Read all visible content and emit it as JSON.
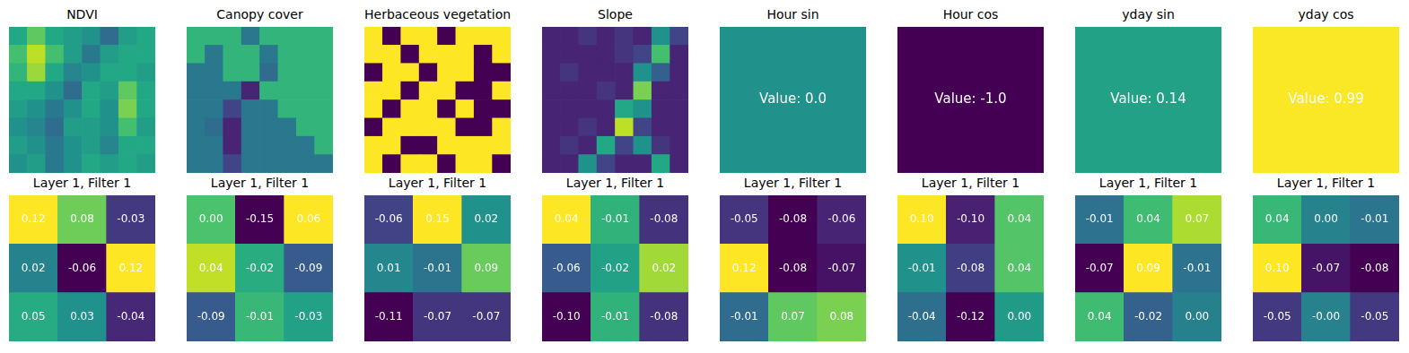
{
  "chart_data": [
    {
      "type": "heatmap",
      "title": "NDVI",
      "tick_labels": false,
      "color_range": [
        0,
        1
      ],
      "values": [
        [
          0.6,
          0.75,
          0.6,
          0.55,
          0.5,
          0.35,
          0.55,
          0.6
        ],
        [
          0.7,
          0.9,
          0.7,
          0.55,
          0.4,
          0.55,
          0.6,
          0.6
        ],
        [
          0.65,
          0.85,
          0.6,
          0.45,
          0.5,
          0.6,
          0.6,
          0.55
        ],
        [
          0.6,
          0.6,
          0.5,
          0.35,
          0.6,
          0.55,
          0.75,
          0.6
        ],
        [
          0.55,
          0.5,
          0.4,
          0.5,
          0.6,
          0.5,
          0.8,
          0.6
        ],
        [
          0.5,
          0.45,
          0.35,
          0.55,
          0.55,
          0.5,
          0.7,
          0.55
        ],
        [
          0.55,
          0.5,
          0.4,
          0.5,
          0.55,
          0.45,
          0.6,
          0.6
        ],
        [
          0.5,
          0.55,
          0.4,
          0.5,
          0.6,
          0.55,
          0.6,
          0.55
        ]
      ]
    },
    {
      "type": "heatmap",
      "title": "Canopy cover",
      "tick_labels": false,
      "color_range": [
        0,
        1
      ],
      "values": [
        [
          0.65,
          0.65,
          0.65,
          0.4,
          0.65,
          0.65,
          0.65,
          0.65
        ],
        [
          0.65,
          0.4,
          0.65,
          0.65,
          0.4,
          0.65,
          0.65,
          0.65
        ],
        [
          0.4,
          0.4,
          0.65,
          0.65,
          0.35,
          0.65,
          0.65,
          0.65
        ],
        [
          0.4,
          0.4,
          0.4,
          0.1,
          0.65,
          0.65,
          0.65,
          0.65
        ],
        [
          0.4,
          0.4,
          0.2,
          0.4,
          0.4,
          0.65,
          0.65,
          0.65
        ],
        [
          0.4,
          0.35,
          0.1,
          0.4,
          0.4,
          0.4,
          0.65,
          0.65
        ],
        [
          0.4,
          0.4,
          0.1,
          0.4,
          0.4,
          0.4,
          0.4,
          0.65
        ],
        [
          0.4,
          0.4,
          0.2,
          0.4,
          0.4,
          0.4,
          0.4,
          0.4
        ]
      ]
    },
    {
      "type": "heatmap",
      "title": "Herbaceous vegetation",
      "tick_labels": false,
      "color_range": [
        0,
        1
      ],
      "values": [
        [
          1,
          0,
          1,
          1,
          0,
          1,
          1,
          1
        ],
        [
          1,
          1,
          0,
          1,
          1,
          1,
          0,
          1
        ],
        [
          0,
          1,
          1,
          0,
          1,
          1,
          0,
          0
        ],
        [
          1,
          1,
          0,
          1,
          1,
          0,
          0,
          1
        ],
        [
          1,
          0,
          1,
          1,
          0,
          1,
          0,
          0
        ],
        [
          0,
          1,
          1,
          1,
          1,
          0,
          0,
          1
        ],
        [
          1,
          1,
          0,
          0,
          1,
          1,
          1,
          1
        ],
        [
          1,
          0,
          1,
          1,
          0,
          1,
          1,
          0
        ]
      ]
    },
    {
      "type": "heatmap",
      "title": "Slope",
      "tick_labels": false,
      "color_range": [
        0,
        1
      ],
      "values": [
        [
          0.1,
          0.1,
          0.15,
          0.1,
          0.15,
          0.1,
          0.5,
          0.2
        ],
        [
          0.1,
          0.1,
          0.1,
          0.1,
          0.15,
          0.2,
          0.7,
          0.1
        ],
        [
          0.1,
          0.15,
          0.1,
          0.1,
          0.1,
          0.5,
          0.3,
          0.1
        ],
        [
          0.1,
          0.1,
          0.1,
          0.15,
          0.1,
          0.8,
          0.1,
          0.1
        ],
        [
          0.1,
          0.1,
          0.1,
          0.1,
          0.6,
          0.5,
          0.1,
          0.1
        ],
        [
          0.1,
          0.1,
          0.15,
          0.1,
          0.9,
          0.2,
          0.1,
          0.1
        ],
        [
          0.1,
          0.15,
          0.1,
          0.6,
          0.2,
          0.5,
          0.15,
          0.1
        ],
        [
          0.1,
          0.1,
          0.5,
          0.2,
          0.1,
          0.1,
          0.6,
          0.1
        ]
      ]
    },
    {
      "type": "heatmap",
      "title": "Hour sin",
      "tick_labels": false,
      "color_range": [
        -1,
        1
      ],
      "annotation": "Value: 0.0",
      "values": [
        [
          0.0
        ]
      ]
    },
    {
      "type": "heatmap",
      "title": "Hour cos",
      "tick_labels": false,
      "color_range": [
        -1,
        1
      ],
      "annotation": "Value: -1.0",
      "values": [
        [
          -1.0
        ]
      ]
    },
    {
      "type": "heatmap",
      "title": "yday sin",
      "tick_labels": false,
      "color_range": [
        -1,
        1
      ],
      "annotation": "Value: 0.14",
      "values": [
        [
          0.14
        ]
      ]
    },
    {
      "type": "heatmap",
      "title": "yday cos",
      "tick_labels": false,
      "color_range": [
        -1,
        1
      ],
      "annotation": "Value: 0.99",
      "values": [
        [
          0.99
        ]
      ]
    },
    {
      "type": "heatmap",
      "title": "Layer 1, Filter 1",
      "tick_labels": false,
      "values": [
        [
          0.12,
          0.08,
          -0.03
        ],
        [
          0.02,
          -0.06,
          0.12
        ],
        [
          0.05,
          0.03,
          -0.04
        ]
      ],
      "value_labels": [
        [
          "0.12",
          "0.08",
          "-0.03"
        ],
        [
          "0.02",
          "-0.06",
          "0.12"
        ],
        [
          "0.05",
          "0.03",
          "-0.04"
        ]
      ]
    },
    {
      "type": "heatmap",
      "title": "Layer 1, Filter 1",
      "tick_labels": false,
      "values": [
        [
          0.0,
          -0.15,
          0.06
        ],
        [
          0.04,
          -0.02,
          -0.09
        ],
        [
          -0.09,
          -0.01,
          -0.03
        ]
      ],
      "value_labels": [
        [
          "0.00",
          "-0.15",
          "0.06"
        ],
        [
          "0.04",
          "-0.02",
          "-0.09"
        ],
        [
          "-0.09",
          "-0.01",
          "-0.03"
        ]
      ]
    },
    {
      "type": "heatmap",
      "title": "Layer 1, Filter 1",
      "tick_labels": false,
      "values": [
        [
          -0.06,
          0.15,
          0.02
        ],
        [
          0.01,
          -0.01,
          0.09
        ],
        [
          -0.11,
          -0.07,
          -0.07
        ]
      ],
      "value_labels": [
        [
          "-0.06",
          "0.15",
          "0.02"
        ],
        [
          "0.01",
          "-0.01",
          "0.09"
        ],
        [
          "-0.11",
          "-0.07",
          "-0.07"
        ]
      ]
    },
    {
      "type": "heatmap",
      "title": "Layer 1, Filter 1",
      "tick_labels": false,
      "values": [
        [
          0.04,
          -0.01,
          -0.08
        ],
        [
          -0.06,
          -0.02,
          0.02
        ],
        [
          -0.1,
          -0.01,
          -0.08
        ]
      ],
      "value_labels": [
        [
          "0.04",
          "-0.01",
          "-0.08"
        ],
        [
          "-0.06",
          "-0.02",
          "0.02"
        ],
        [
          "-0.10",
          "-0.01",
          "-0.08"
        ]
      ]
    },
    {
      "type": "heatmap",
      "title": "Layer 1, Filter 1",
      "tick_labels": false,
      "values": [
        [
          -0.05,
          -0.08,
          -0.06
        ],
        [
          0.12,
          -0.08,
          -0.07
        ],
        [
          -0.01,
          0.07,
          0.08
        ]
      ],
      "value_labels": [
        [
          "-0.05",
          "-0.08",
          "-0.06"
        ],
        [
          "0.12",
          "-0.08",
          "-0.07"
        ],
        [
          "-0.01",
          "0.07",
          "0.08"
        ]
      ]
    },
    {
      "type": "heatmap",
      "title": "Layer 1, Filter 1",
      "tick_labels": false,
      "values": [
        [
          0.1,
          -0.1,
          0.04
        ],
        [
          -0.01,
          -0.08,
          0.04
        ],
        [
          -0.04,
          -0.12,
          0.0
        ]
      ],
      "value_labels": [
        [
          "0.10",
          "-0.10",
          "0.04"
        ],
        [
          "-0.01",
          "-0.08",
          "0.04"
        ],
        [
          "-0.04",
          "-0.12",
          "0.00"
        ]
      ]
    },
    {
      "type": "heatmap",
      "title": "Layer 1, Filter 1",
      "tick_labels": false,
      "values": [
        [
          -0.01,
          0.04,
          0.07
        ],
        [
          -0.07,
          0.09,
          -0.01
        ],
        [
          0.04,
          -0.02,
          0.0
        ]
      ],
      "value_labels": [
        [
          "-0.01",
          "0.04",
          "0.07"
        ],
        [
          "-0.07",
          "0.09",
          "-0.01"
        ],
        [
          "0.04",
          "-0.02",
          "0.00"
        ]
      ]
    },
    {
      "type": "heatmap",
      "title": "Layer 1, Filter 1",
      "tick_labels": false,
      "values": [
        [
          0.04,
          0.0,
          -0.01
        ],
        [
          0.1,
          -0.07,
          -0.08
        ],
        [
          -0.05,
          -0.001,
          -0.05
        ]
      ],
      "value_labels": [
        [
          "0.04",
          "0.00",
          "-0.01"
        ],
        [
          "0.10",
          "-0.07",
          "-0.08"
        ],
        [
          "-0.05",
          "-0.00",
          "-0.05"
        ]
      ]
    }
  ]
}
